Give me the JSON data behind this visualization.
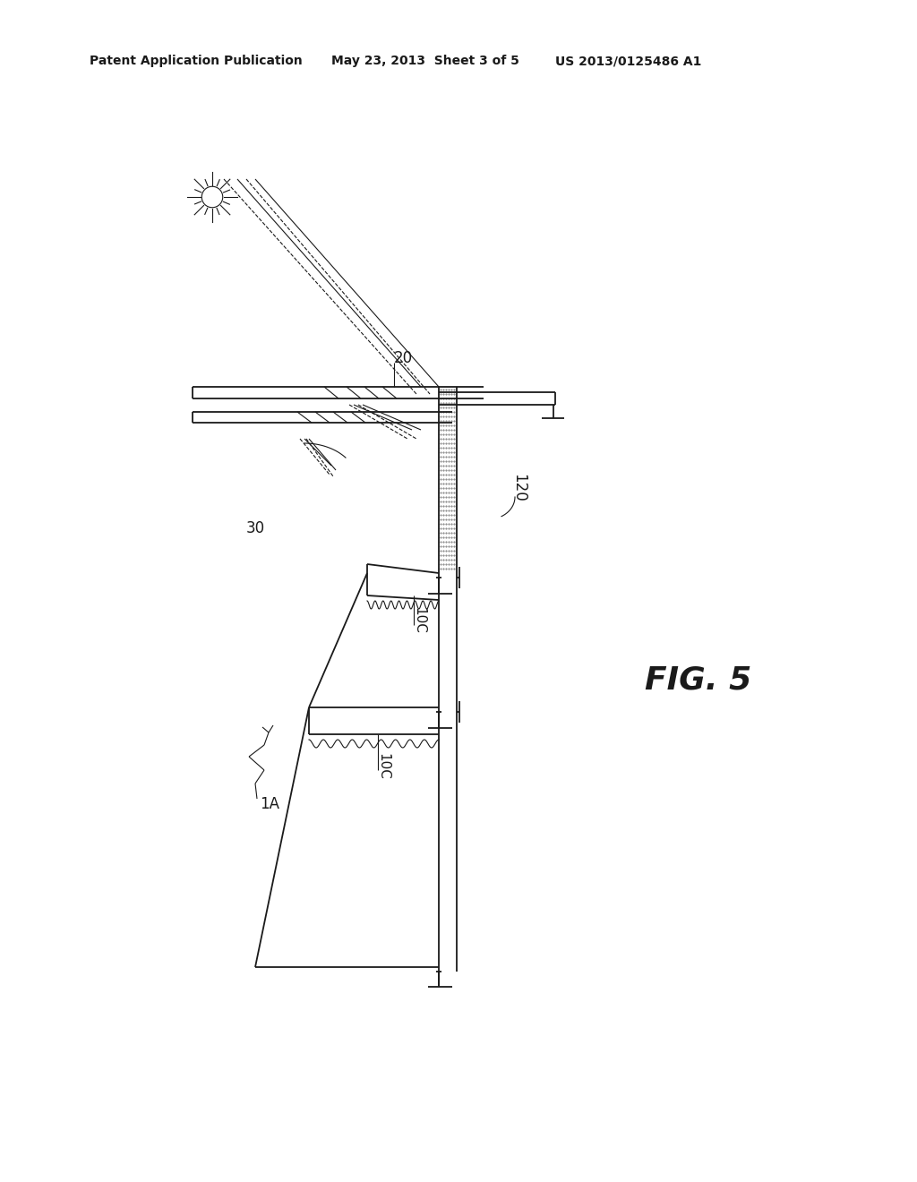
{
  "bg_color": "#ffffff",
  "line_color": "#1a1a1a",
  "header_left": "Patent Application Publication",
  "header_mid": "May 23, 2013  Sheet 3 of 5",
  "header_right": "US 2013/0125486 A1",
  "fig_label": "FIG. 5"
}
